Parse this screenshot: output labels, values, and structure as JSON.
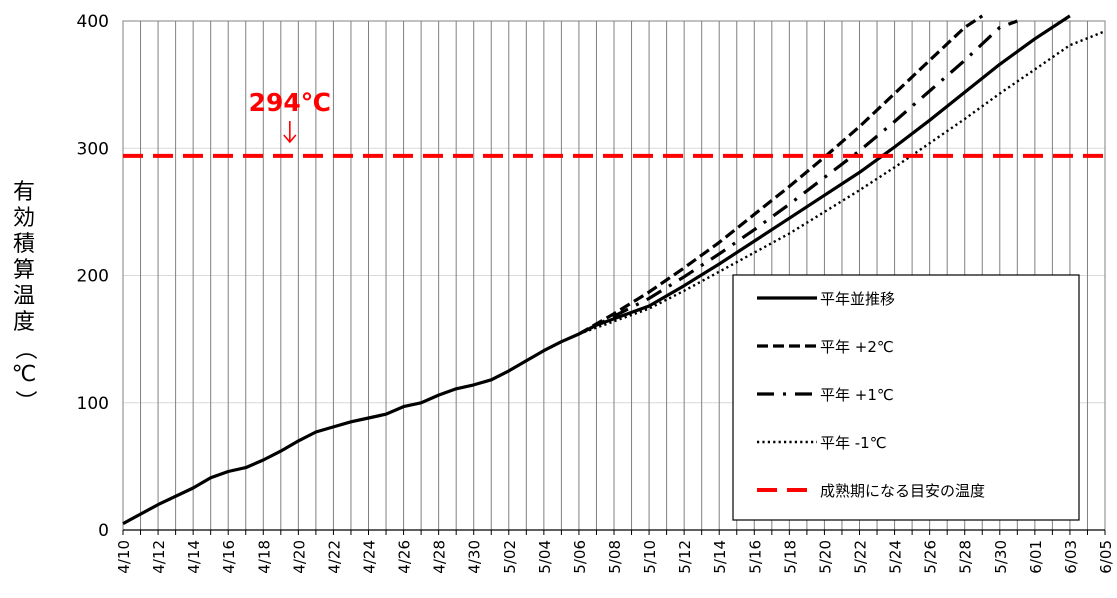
{
  "chart_data": {
    "type": "line",
    "ylabel": "有効積算温度（℃）",
    "ylim": [
      0,
      400
    ],
    "yticks": [
      0,
      100,
      200,
      300,
      400
    ],
    "xlim": [
      "4/10",
      "6/05"
    ],
    "xtick_labels": [
      "4/10",
      "4/12",
      "4/14",
      "4/16",
      "4/18",
      "4/20",
      "4/22",
      "4/24",
      "4/26",
      "4/28",
      "4/30",
      "5/02",
      "5/04",
      "5/06",
      "5/08",
      "5/10",
      "5/12",
      "5/14",
      "5/16",
      "5/18",
      "5/20",
      "5/22",
      "5/24",
      "5/26",
      "5/28",
      "5/30",
      "6/01",
      "6/03",
      "6/05"
    ],
    "grid": {
      "vertical": true,
      "horizontal": true
    },
    "legend_position": "bottom-right",
    "annotation": {
      "text": "294℃",
      "value": 294,
      "color": "#ff0000"
    },
    "series": [
      {
        "name": "平年並推移",
        "style": "solid",
        "color": "#000000",
        "points": [
          [
            "4/10",
            5
          ],
          [
            "4/12",
            20
          ],
          [
            "4/14",
            33
          ],
          [
            "4/15",
            41
          ],
          [
            "4/16",
            46
          ],
          [
            "4/17",
            49
          ],
          [
            "4/18",
            55
          ],
          [
            "4/19",
            62
          ],
          [
            "4/20",
            70
          ],
          [
            "4/21",
            77
          ],
          [
            "4/22",
            81
          ],
          [
            "4/23",
            85
          ],
          [
            "4/24",
            88
          ],
          [
            "4/25",
            91
          ],
          [
            "4/26",
            97
          ],
          [
            "4/27",
            100
          ],
          [
            "4/28",
            106
          ],
          [
            "4/29",
            111
          ],
          [
            "4/30",
            114
          ],
          [
            "5/01",
            118
          ],
          [
            "5/02",
            125
          ],
          [
            "5/03",
            133
          ],
          [
            "5/04",
            141
          ],
          [
            "5/05",
            148
          ],
          [
            "5/06",
            154
          ],
          [
            "5/07",
            161
          ],
          [
            "5/08",
            166
          ],
          [
            "5/09",
            171
          ],
          [
            "5/10",
            176
          ],
          [
            "5/12",
            192
          ],
          [
            "5/14",
            209
          ],
          [
            "5/16",
            227
          ],
          [
            "5/18",
            245
          ],
          [
            "5/20",
            263
          ],
          [
            "5/22",
            281
          ],
          [
            "5/24",
            301
          ],
          [
            "5/26",
            322
          ],
          [
            "5/28",
            344
          ],
          [
            "5/30",
            366
          ],
          [
            "6/01",
            386
          ],
          [
            "6/03",
            404
          ]
        ]
      },
      {
        "name": "平年 +2℃",
        "style": "dashed",
        "color": "#000000",
        "points": [
          [
            "5/06",
            154
          ],
          [
            "5/08",
            170
          ],
          [
            "5/10",
            187
          ],
          [
            "5/12",
            206
          ],
          [
            "5/14",
            226
          ],
          [
            "5/16",
            248
          ],
          [
            "5/18",
            270
          ],
          [
            "5/20",
            293
          ],
          [
            "5/22",
            317
          ],
          [
            "5/24",
            343
          ],
          [
            "5/26",
            369
          ],
          [
            "5/28",
            395
          ],
          [
            "5/29",
            404
          ]
        ]
      },
      {
        "name": "平年 +1℃",
        "style": "dashdot",
        "color": "#000000",
        "points": [
          [
            "5/06",
            154
          ],
          [
            "5/08",
            168
          ],
          [
            "5/10",
            182
          ],
          [
            "5/12",
            199
          ],
          [
            "5/14",
            217
          ],
          [
            "5/16",
            236
          ],
          [
            "5/18",
            256
          ],
          [
            "5/20",
            277
          ],
          [
            "5/22",
            298
          ],
          [
            "5/24",
            321
          ],
          [
            "5/26",
            345
          ],
          [
            "5/28",
            369
          ],
          [
            "5/30",
            395
          ],
          [
            "5/31",
            400
          ]
        ]
      },
      {
        "name": "平年 -1℃",
        "style": "dotted",
        "color": "#000000",
        "points": [
          [
            "5/06",
            154
          ],
          [
            "5/08",
            164
          ],
          [
            "5/10",
            174
          ],
          [
            "5/12",
            188
          ],
          [
            "5/14",
            203
          ],
          [
            "5/16",
            218
          ],
          [
            "5/18",
            233
          ],
          [
            "5/20",
            250
          ],
          [
            "5/22",
            267
          ],
          [
            "5/24",
            285
          ],
          [
            "5/26",
            304
          ],
          [
            "5/28",
            323
          ],
          [
            "5/30",
            343
          ],
          [
            "6/01",
            362
          ],
          [
            "6/03",
            381
          ],
          [
            "6/05",
            392
          ]
        ]
      },
      {
        "name": "成熟期になる目安の温度",
        "style": "dashed",
        "color": "#ff0000",
        "points": [
          [
            "4/10",
            294
          ],
          [
            "6/05",
            294
          ]
        ]
      }
    ]
  }
}
